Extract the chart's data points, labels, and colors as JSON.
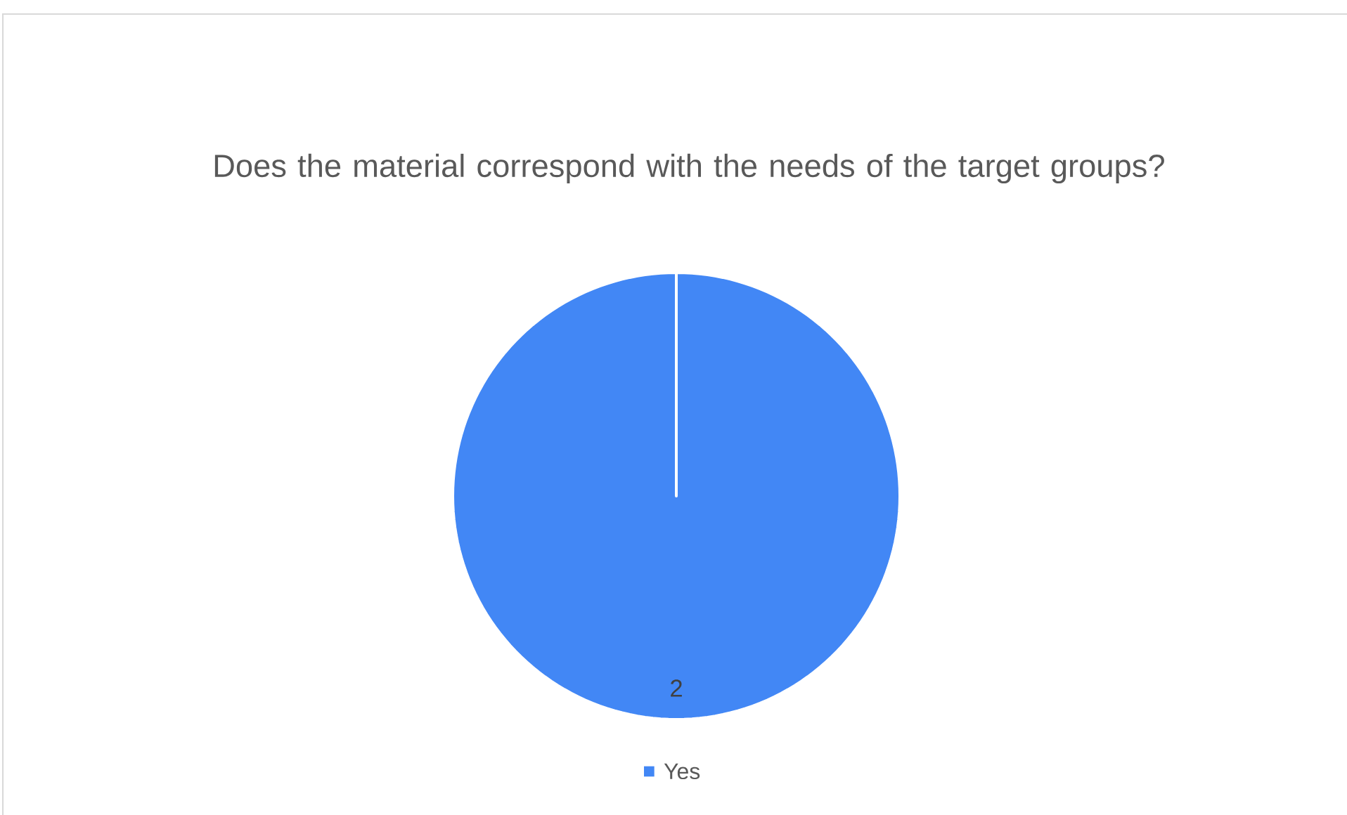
{
  "chart_data": {
    "type": "pie",
    "title": "Does the material correspond with the needs of the target groups?",
    "categories": [
      "Yes"
    ],
    "values": [
      2
    ],
    "colors": [
      "#4287f5"
    ],
    "data_labels": true,
    "legend": "bottom"
  }
}
